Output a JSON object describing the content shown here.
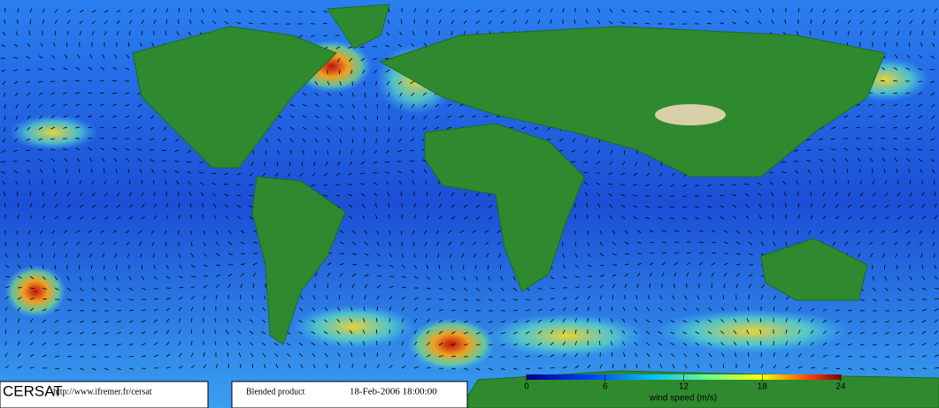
{
  "header": {
    "logo": "CERSAT",
    "url": "http://www.ifremer.fr/cersat",
    "product": "Blended product",
    "date": "18-Feb-2006 18:00:00"
  },
  "colorbar": {
    "label": "wind speed (m/s)",
    "lim": [
      0,
      24
    ],
    "ticks": [
      0,
      6,
      12,
      18,
      24
    ]
  }
}
